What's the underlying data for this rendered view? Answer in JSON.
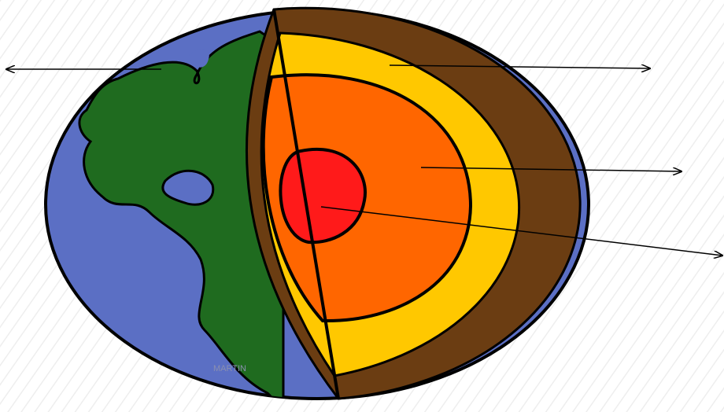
{
  "signature": "MARTIN"
}
